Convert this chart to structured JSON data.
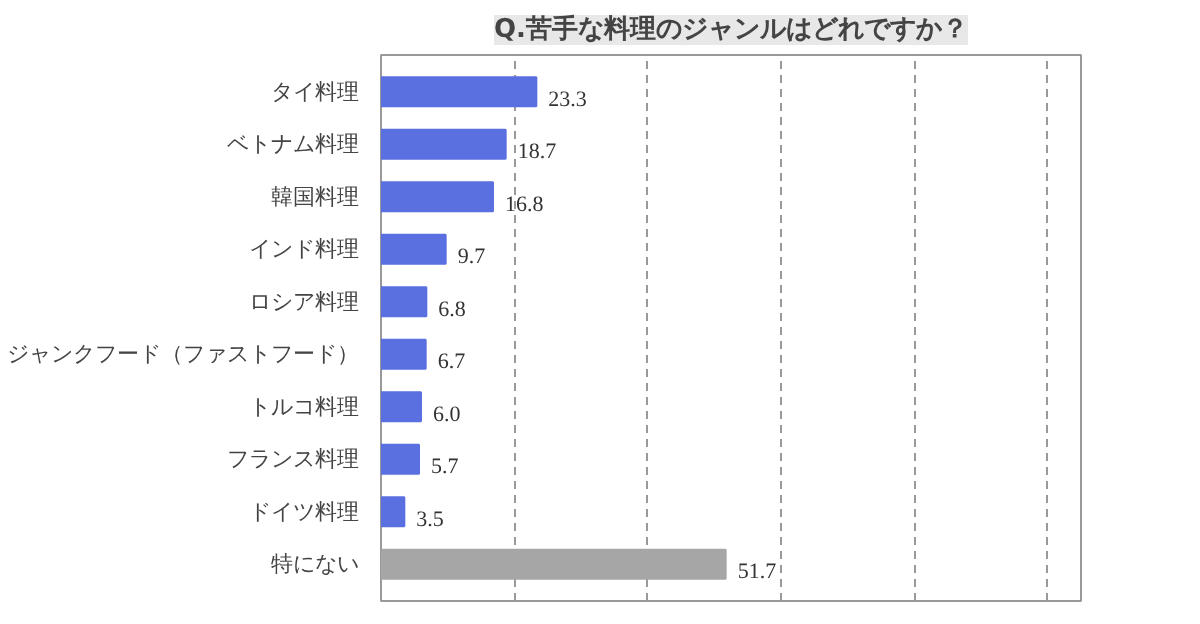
{
  "chart_data": {
    "type": "bar",
    "orientation": "horizontal",
    "title": "Q.苦手な料理のジャンルはどれですか？",
    "categories": [
      "タイ料理",
      "ベトナム料理",
      "韓国料理",
      "インド料理",
      "ロシア料理",
      "ジャンクフード（ファストフード）",
      "トルコ料理",
      "フランス料理",
      "ドイツ料理",
      "特にない"
    ],
    "values": [
      23.3,
      18.7,
      16.8,
      9.7,
      6.8,
      6.7,
      6.0,
      5.7,
      3.5,
      51.7
    ],
    "colors": [
      "#5a6fe0",
      "#5a6fe0",
      "#5a6fe0",
      "#5a6fe0",
      "#5a6fe0",
      "#5a6fe0",
      "#5a6fe0",
      "#5a6fe0",
      "#5a6fe0",
      "#a6a6a6"
    ],
    "xlim": [
      0,
      105
    ],
    "xticks": [
      {
        "value": 20,
        "label": null
      },
      {
        "value": 40,
        "label": null
      },
      {
        "value": 60,
        "label": null
      },
      {
        "value": 80,
        "label": null
      },
      {
        "value": 100,
        "label": null
      }
    ],
    "value_labels": [
      "23.3",
      "18.7",
      "16.8",
      "9.7",
      "6.8",
      "6.7",
      "6.0",
      "5.7",
      "3.5",
      "51.7"
    ],
    "tick_labels": "y",
    "grid": "x"
  }
}
